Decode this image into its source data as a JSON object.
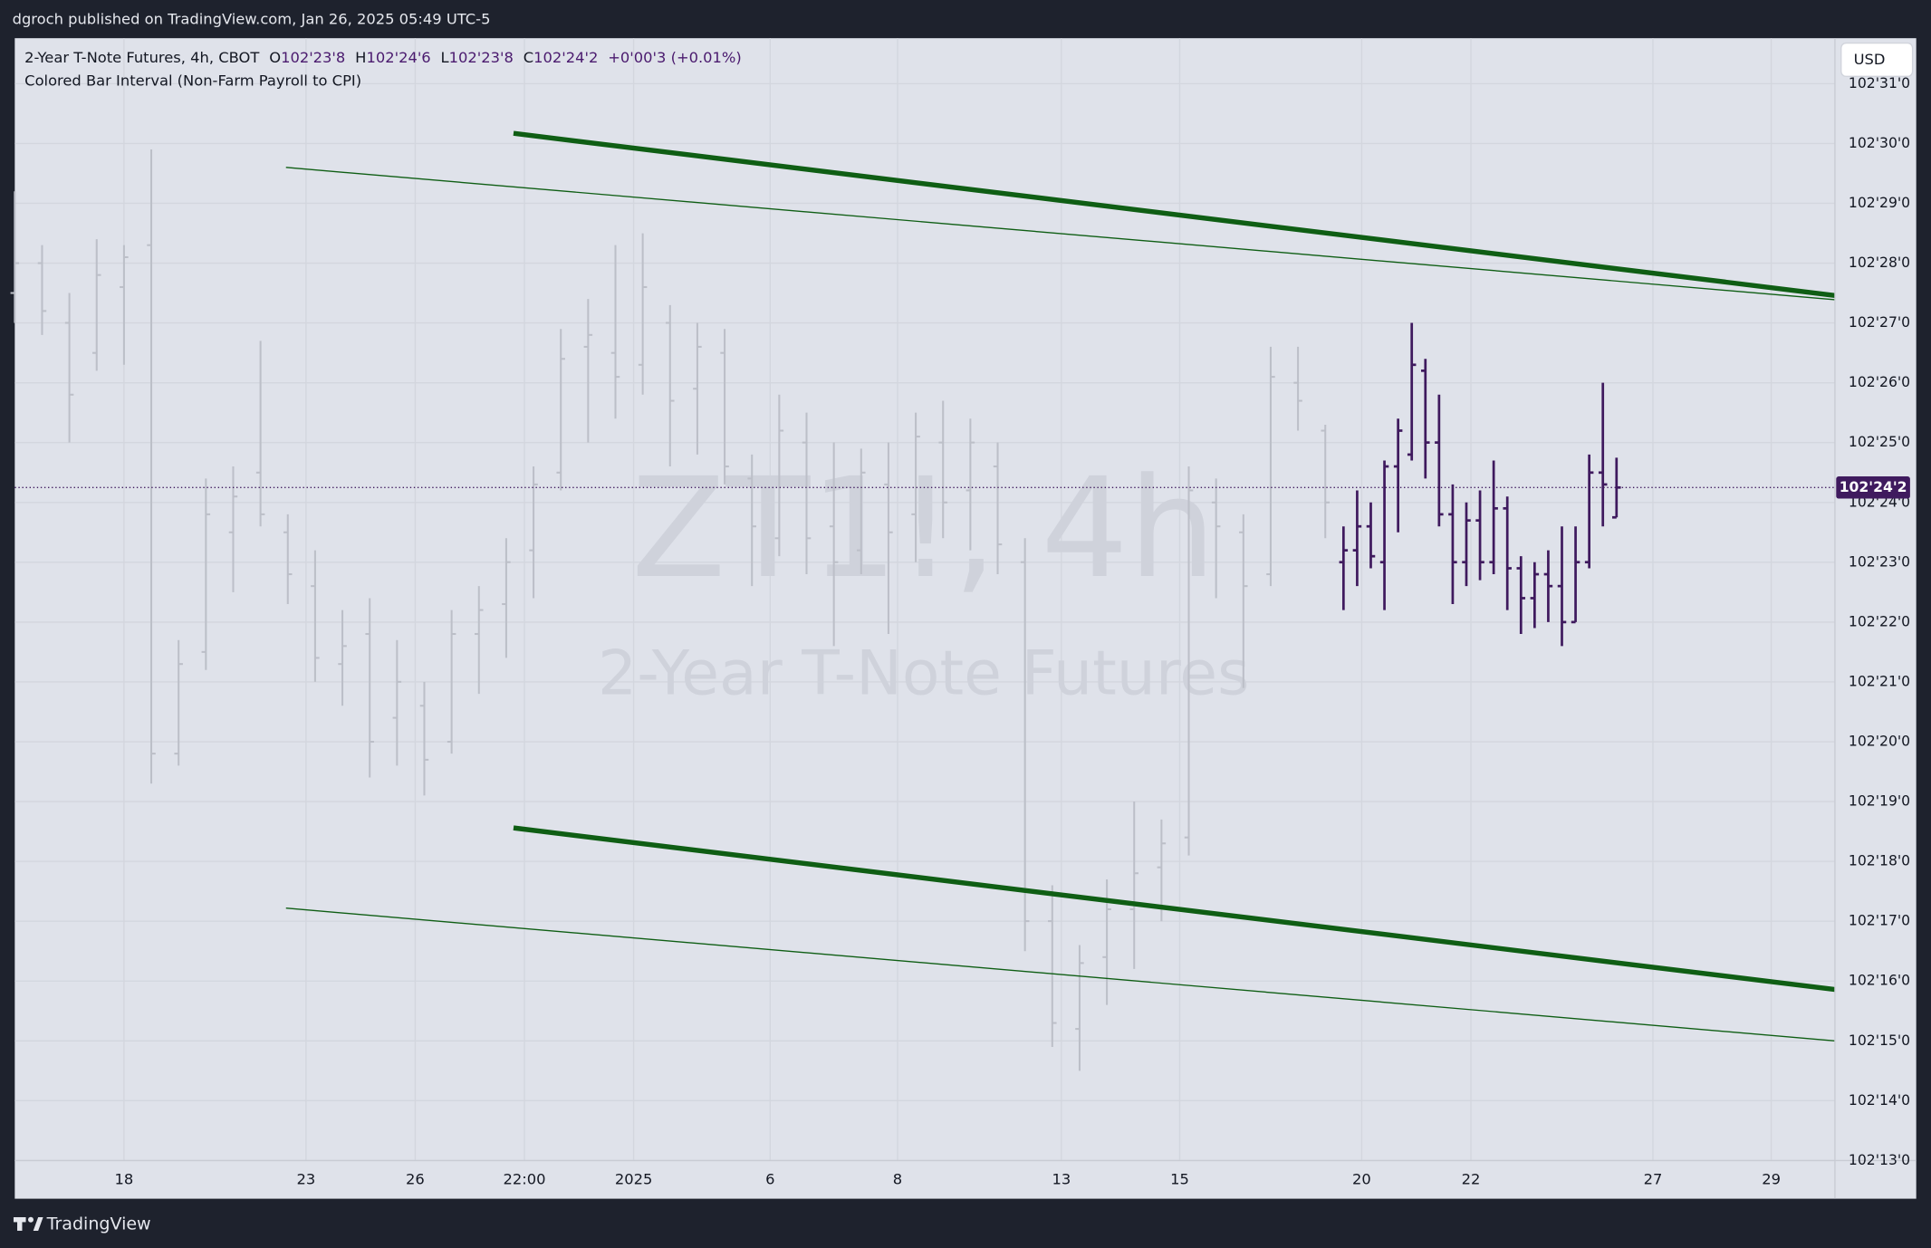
{
  "header": {
    "published": "dgroch published on TradingView.com, Jan 26, 2025 05:49 UTC-5"
  },
  "footer": {
    "brand": "TradingView"
  },
  "chart_data": {
    "type": "ohlc",
    "symbol": "2-Year T-Note Futures, 4h, CBOT",
    "ohlc_labels": [
      "O",
      "H",
      "L",
      "C"
    ],
    "ohlc_texts": [
      "102'23'8",
      "102'24'6",
      "102'23'8",
      "102'24'2"
    ],
    "change": "+0'00'3 (+0.01%)",
    "indicator": "Colored Bar Interval (Non-Farm Payroll to CPI)",
    "watermark": "ZT1!, 4h",
    "watermark_subtitle": "2-Year T-Note Futures",
    "currency": "USD",
    "last_price_label": "102'24'2",
    "grid": true,
    "xlim": [
      0,
      200
    ],
    "ylim": [
      102.40625,
      102.9925
    ],
    "xticks": [
      {
        "value": 12,
        "label": "18"
      },
      {
        "value": 32,
        "label": "23"
      },
      {
        "value": 44,
        "label": "26"
      },
      {
        "value": 56,
        "label": "22:00"
      },
      {
        "value": 68,
        "label": "2025"
      },
      {
        "value": 83,
        "label": "6"
      },
      {
        "value": 97,
        "label": "8"
      },
      {
        "value": 115,
        "label": "13"
      },
      {
        "value": 128,
        "label": "15"
      },
      {
        "value": 148,
        "label": "20"
      },
      {
        "value": 160,
        "label": "22"
      },
      {
        "value": 180,
        "label": "27"
      },
      {
        "value": 193,
        "label": "29"
      }
    ],
    "yticks": [
      {
        "value": 102.40625,
        "label": "102'13'0"
      },
      {
        "value": 102.4375,
        "label": "102'14'0"
      },
      {
        "value": 102.46875,
        "label": "102'15'0"
      },
      {
        "value": 102.5,
        "label": "102'16'0"
      },
      {
        "value": 102.53125,
        "label": "102'17'0"
      },
      {
        "value": 102.5625,
        "label": "102'18'0"
      },
      {
        "value": 102.59375,
        "label": "102'19'0"
      },
      {
        "value": 102.625,
        "label": "102'20'0"
      },
      {
        "value": 102.65625,
        "label": "102'21'0"
      },
      {
        "value": 102.6875,
        "label": "102'22'0"
      },
      {
        "value": 102.71875,
        "label": "102'23'0"
      },
      {
        "value": 102.75,
        "label": "102'24'0"
      },
      {
        "value": 102.78125,
        "label": "102'25'0"
      },
      {
        "value": 102.8125,
        "label": "102'26'0"
      },
      {
        "value": 102.84375,
        "label": "102'27'0"
      },
      {
        "value": 102.875,
        "label": "102'28'0"
      },
      {
        "value": 102.90625,
        "label": "102'29'0"
      },
      {
        "value": 102.9375,
        "label": "102'30'0"
      },
      {
        "value": 102.96875,
        "label": "102'31'0"
      }
    ],
    "series": [
      {
        "color": "#bcbfc8",
        "x": [
          0,
          3,
          6,
          9,
          12,
          15,
          18,
          21,
          24,
          27,
          30,
          33,
          36,
          39,
          42,
          45,
          48,
          51,
          54,
          57,
          60,
          63,
          66,
          69,
          72,
          75,
          78,
          81,
          84,
          87,
          90,
          93,
          96,
          99,
          102,
          105,
          108,
          111,
          114,
          117,
          120,
          123,
          126,
          129,
          132,
          135,
          138,
          141,
          144
        ],
        "ohlc": [
          [
            102.8594,
            102.9125,
            102.8438,
            102.875
          ],
          [
            102.875,
            102.8844,
            102.8375,
            102.85
          ],
          [
            102.8438,
            102.8594,
            102.7813,
            102.8063
          ],
          [
            102.8281,
            102.8875,
            102.8188,
            102.8688
          ],
          [
            102.8625,
            102.8844,
            102.8219,
            102.8781
          ],
          [
            102.8844,
            102.9344,
            102.6031,
            102.6188
          ],
          [
            102.6188,
            102.6781,
            102.6125,
            102.6656
          ],
          [
            102.6719,
            102.7625,
            102.6625,
            102.7438
          ],
          [
            102.7344,
            102.7688,
            102.7031,
            102.7531
          ],
          [
            102.7656,
            102.8344,
            102.7375,
            102.7438
          ],
          [
            102.7344,
            102.7438,
            102.6969,
            102.7125
          ],
          [
            102.7063,
            102.725,
            102.6563,
            102.6688
          ],
          [
            102.6656,
            102.6938,
            102.6438,
            102.675
          ],
          [
            102.6813,
            102.7,
            102.6063,
            102.625
          ],
          [
            102.6375,
            102.6781,
            102.6125,
            102.6563
          ],
          [
            102.6438,
            102.6563,
            102.5969,
            102.6156
          ],
          [
            102.625,
            102.6938,
            102.6188,
            102.6813
          ],
          [
            102.6813,
            102.7063,
            102.65,
            102.6938
          ],
          [
            102.6969,
            102.7313,
            102.6688,
            102.7188
          ],
          [
            102.725,
            102.7688,
            102.7,
            102.7594
          ],
          [
            102.7656,
            102.8406,
            102.7563,
            102.825
          ],
          [
            102.8313,
            102.8563,
            102.7813,
            102.8375
          ],
          [
            102.8281,
            102.8844,
            102.7938,
            102.8156
          ],
          [
            102.8219,
            102.8906,
            102.8063,
            102.8625
          ],
          [
            102.8438,
            102.8531,
            102.7688,
            102.8031
          ],
          [
            102.8094,
            102.8438,
            102.775,
            102.8313
          ],
          [
            102.8281,
            102.8406,
            102.7594,
            102.7688
          ],
          [
            102.7625,
            102.775,
            102.7063,
            102.7375
          ],
          [
            102.7313,
            102.8063,
            102.7219,
            102.7875
          ],
          [
            102.7813,
            102.7969,
            102.7125,
            102.7313
          ],
          [
            102.7375,
            102.7813,
            102.675,
            102.7188
          ],
          [
            102.725,
            102.7781,
            102.7125,
            102.7656
          ],
          [
            102.7594,
            102.7813,
            102.6813,
            102.7344
          ],
          [
            102.7438,
            102.7969,
            102.7188,
            102.7844
          ],
          [
            102.7813,
            102.8031,
            102.7313,
            102.75
          ],
          [
            102.7563,
            102.7938,
            102.725,
            102.7813
          ],
          [
            102.7688,
            102.7813,
            102.7125,
            102.7281
          ],
          [
            102.7188,
            102.7313,
            102.5156,
            102.5313
          ],
          [
            102.5313,
            102.55,
            102.4656,
            102.4781
          ],
          [
            102.475,
            102.5188,
            102.4531,
            102.5094
          ],
          [
            102.5125,
            102.5531,
            102.4875,
            102.5375
          ],
          [
            102.5375,
            102.5938,
            102.5063,
            102.5563
          ],
          [
            102.5594,
            102.5844,
            102.5313,
            102.5719
          ],
          [
            102.575,
            102.7688,
            102.5656,
            102.7563
          ],
          [
            102.75,
            102.7625,
            102.7,
            102.7375
          ],
          [
            102.7344,
            102.7438,
            102.6531,
            102.7063
          ],
          [
            102.7125,
            102.8313,
            102.7063,
            102.8156
          ],
          [
            102.8125,
            102.8313,
            102.7875,
            102.8031
          ],
          [
            102.7875,
            102.7906,
            102.7313,
            102.75
          ]
        ]
      },
      {
        "color": "#3f1a5e",
        "x": [
          146,
          147.5,
          149,
          150.5,
          152,
          153.5,
          155,
          156.5,
          158,
          159.5,
          161,
          162.5,
          164,
          165.5,
          167,
          168.5,
          170,
          171.5,
          173,
          174.5,
          176
        ],
        "ohlc": [
          [
            102.7188,
            102.7375,
            102.6938,
            102.725
          ],
          [
            102.725,
            102.7563,
            102.7063,
            102.7375
          ],
          [
            102.7375,
            102.75,
            102.7156,
            102.7219
          ],
          [
            102.7188,
            102.7719,
            102.6938,
            102.7688
          ],
          [
            102.7688,
            102.7938,
            102.7344,
            102.7875
          ],
          [
            102.775,
            102.8438,
            102.7719,
            102.8219
          ],
          [
            102.8188,
            102.825,
            102.7625,
            102.7813
          ],
          [
            102.7813,
            102.8063,
            102.7375,
            102.7438
          ],
          [
            102.7438,
            102.7594,
            102.6969,
            102.7188
          ],
          [
            102.7188,
            102.75,
            102.7063,
            102.7406
          ],
          [
            102.7406,
            102.7563,
            102.7094,
            102.7188
          ],
          [
            102.7188,
            102.7719,
            102.7125,
            102.7469
          ],
          [
            102.7469,
            102.7531,
            102.6938,
            102.7156
          ],
          [
            102.7156,
            102.7219,
            102.6813,
            102.7
          ],
          [
            102.7,
            102.7188,
            102.6844,
            102.7125
          ],
          [
            102.7125,
            102.725,
            102.6875,
            102.7063
          ],
          [
            102.7063,
            102.7375,
            102.675,
            102.6875
          ],
          [
            102.6875,
            102.7375,
            102.6875,
            102.7188
          ],
          [
            102.7188,
            102.775,
            102.7156,
            102.7656
          ],
          [
            102.7656,
            102.8125,
            102.7375,
            102.7594
          ],
          [
            102.7422,
            102.7734,
            102.7422,
            102.7578
          ]
        ]
      }
    ],
    "trendlines": [
      {
        "color": "#0f5e14",
        "width": 4,
        "x": [
          54.8,
          200
        ],
        "y": [
          102.9428,
          102.8581
        ]
      },
      {
        "color": "#0f5e14",
        "width": 1,
        "x": [
          29.8,
          200
        ],
        "y": [
          102.925,
          102.8559
        ]
      },
      {
        "color": "#0f5e14",
        "width": 4,
        "x": [
          54.8,
          200
        ],
        "y": [
          102.58,
          102.4956
        ]
      },
      {
        "color": "#0f5e14",
        "width": 1,
        "x": [
          29.8,
          200
        ],
        "y": [
          102.5381,
          102.46875
        ]
      }
    ]
  }
}
